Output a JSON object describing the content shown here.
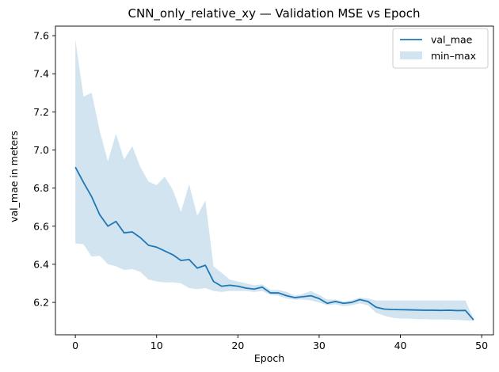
{
  "chart_data": {
    "type": "line",
    "title": "CNN_only_relative_xy — Validation MSE vs Epoch",
    "xlabel": "Epoch",
    "ylabel": "val_mae in meters",
    "xlim": [
      -2.45,
      51.45
    ],
    "ylim": [
      6.03,
      7.65
    ],
    "xticks": [
      0,
      10,
      20,
      30,
      40,
      50
    ],
    "yticks": [
      6.2,
      6.4,
      6.6,
      6.8,
      7.0,
      7.2,
      7.4,
      7.6
    ],
    "grid": false,
    "legend": "top-right",
    "colors": {
      "line": "#1f77b4",
      "band": "#1f77b4"
    },
    "x": [
      0,
      1,
      2,
      3,
      4,
      5,
      6,
      7,
      8,
      9,
      10,
      11,
      12,
      13,
      14,
      15,
      16,
      17,
      18,
      19,
      20,
      21,
      22,
      23,
      24,
      25,
      26,
      27,
      28,
      29,
      30,
      31,
      32,
      33,
      34,
      35,
      36,
      37,
      38,
      39,
      40,
      41,
      42,
      43,
      44,
      45,
      46,
      47,
      48,
      49
    ],
    "series": [
      {
        "name": "val_mae",
        "values": [
          6.91,
          6.83,
          6.755,
          6.66,
          6.6,
          6.625,
          6.565,
          6.57,
          6.54,
          6.5,
          6.49,
          6.47,
          6.45,
          6.42,
          6.425,
          6.38,
          6.395,
          6.31,
          6.285,
          6.29,
          6.285,
          6.275,
          6.27,
          6.28,
          6.25,
          6.25,
          6.235,
          6.225,
          6.23,
          6.235,
          6.22,
          6.195,
          6.205,
          6.195,
          6.2,
          6.215,
          6.205,
          6.175,
          6.165,
          6.163,
          6.162,
          6.161,
          6.16,
          6.159,
          6.159,
          6.158,
          6.159,
          6.157,
          6.158,
          6.108
        ]
      }
    ],
    "band": {
      "name": "min–max",
      "lower": [
        6.51,
        6.505,
        6.44,
        6.445,
        6.4,
        6.39,
        6.37,
        6.375,
        6.36,
        6.32,
        6.31,
        6.305,
        6.305,
        6.3,
        6.275,
        6.27,
        6.275,
        6.26,
        6.255,
        6.26,
        6.26,
        6.26,
        6.255,
        6.26,
        6.24,
        6.235,
        6.22,
        6.215,
        6.215,
        6.21,
        6.2,
        6.185,
        6.19,
        6.18,
        6.185,
        6.195,
        6.185,
        6.145,
        6.13,
        6.12,
        6.115,
        6.115,
        6.112,
        6.112,
        6.11,
        6.11,
        6.11,
        6.108,
        6.106,
        6.103
      ],
      "upper": [
        7.58,
        7.28,
        7.3,
        7.1,
        6.94,
        7.085,
        6.95,
        7.02,
        6.91,
        6.835,
        6.815,
        6.86,
        6.79,
        6.675,
        6.82,
        6.655,
        6.735,
        6.39,
        6.355,
        6.32,
        6.31,
        6.3,
        6.29,
        6.295,
        6.265,
        6.265,
        6.255,
        6.235,
        6.245,
        6.26,
        6.24,
        6.215,
        6.215,
        6.205,
        6.21,
        6.225,
        6.22,
        6.21,
        6.21,
        6.21,
        6.21,
        6.21,
        6.21,
        6.21,
        6.21,
        6.21,
        6.21,
        6.21,
        6.21,
        6.113
      ]
    },
    "legend_entries": [
      "val_mae",
      "min–max"
    ]
  }
}
